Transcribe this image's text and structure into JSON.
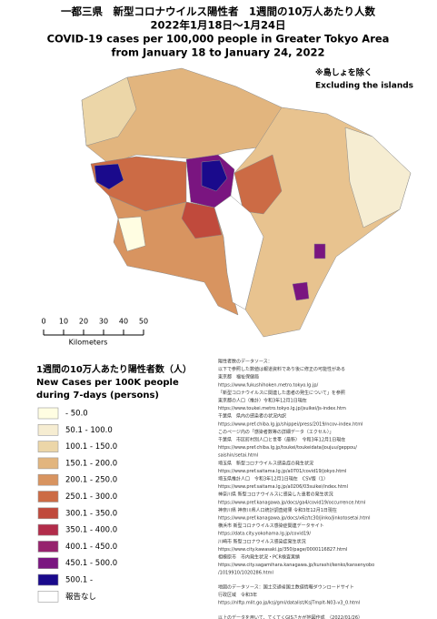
{
  "title": [
    "一都三県　新型コロナウイルス陽性者　1週間の10万人あたり人数",
    "2022年1月18日～1月24日",
    "COVID-19 cases per 100,000 people in Greater Tokyo Area",
    "from January 18 to January 24, 2022"
  ],
  "note": [
    "※島しょを除く",
    "Excluding the islands"
  ],
  "scale": {
    "ticks": [
      0,
      10,
      20,
      30,
      40,
      50
    ],
    "unit": "Kilometers"
  },
  "legend": {
    "title": [
      "1週間の10万人あたり陽性者数（人）",
      "New Cases per 100K people",
      "during 7-days (persons)"
    ],
    "items": [
      {
        "label": "- 50.0",
        "color": "#fffde2"
      },
      {
        "label": "50.1 - 100.0",
        "color": "#f6edd2"
      },
      {
        "label": "100.1 - 150.0",
        "color": "#ecd6a8"
      },
      {
        "label": "150.1 - 200.0",
        "color": "#e2b57e"
      },
      {
        "label": "200.1 - 250.0",
        "color": "#d89460"
      },
      {
        "label": "250.1 - 300.0",
        "color": "#cc6b45"
      },
      {
        "label": "300.1 - 350.0",
        "color": "#c04a3c"
      },
      {
        "label": "350.1 - 400.0",
        "color": "#b22c4a"
      },
      {
        "label": "400.1 - 450.0",
        "color": "#96236e"
      },
      {
        "label": "450.1 - 500.0",
        "color": "#7a1580"
      },
      {
        "label": "500.1 -",
        "color": "#1a0a8c"
      },
      {
        "label": "報告なし",
        "color": "#ffffff"
      }
    ]
  },
  "sources": [
    "陽性者数のデータソース：",
    "以下で参照した数値は報道資料であり後に修正の可能性がある",
    "東京都　福祉保健局",
    "https://www.fukushihoken.metro.tokyo.lg.jp/",
    "「新型コロナウイルスに関連した患者の発生について」を参照",
    "東京都の人口（推計）令和3年12月1日現在",
    "https://www.toukei.metro.tokyo.lg.jp/jsuikei/js-index.htm",
    "千葉県　県内の感染者の状況内訳",
    "https://www.pref.chiba.lg.jp/shippei/press/2019/ncov-index.html",
    "このページ内の「感染者数等の詳細データ（エクセル）」",
    "千葉県　市区町村別人口と世帯（最新）　令和3年12月1日現在",
    "https://www.pref.chiba.lg.jp/toukei/toukeidata/joujuu/geppou/",
    "saishin/setai.html",
    "埼玉県　新型コロナウイルス感染症の発生状況",
    "https://www.pref.saitama.lg.jp/a0701/covid19/jokyo.html",
    "埼玉県推計人口　令和3年12月1日現在　CSV版（1）",
    "https://www.pref.saitama.lg.jp/a0206/03suikei/index.html",
    "神奈川県 新型コロナウイルスに感染した患者の発生状況",
    "https://www.pref.kanagawa.jp/docs/ga4/covid19/occurrence.html",
    "神奈川県 神奈川県人口統計調査結果 令和3年12月1日現在",
    "https://www.pref.kanagawa.jp/docs/x6z/tc30/jinko/jinkotosetai.html",
    "横浜市 新型コロナウイルス感染症関連データサイト",
    "https://data.city.yokohama.lg.jp/covid19/",
    "川崎市 新型コロナウイルス感染症発生状況",
    "https://www.city.kawasaki.jp/350/page/0000116827.html",
    "相模原市　市内発生状況・PCR検査実績",
    "https://www.city.sagamihara.kanagawa.jp/kurashi/kenko/kansenyobo",
    "/1019910/1020286.html"
  ],
  "map_source": [
    "地図のデータソース：国土交通省国土数値情報ダウンロードサイト",
    "行政区域　令和3年",
    "https://nlftp.mlit.go.jp/ksj/gml/datalist/KsjTmplt-N03-v3_0.html"
  ],
  "footer": "以上のデータを用いて、てくてくGISさかが地図作成　（2022/01/26）"
}
